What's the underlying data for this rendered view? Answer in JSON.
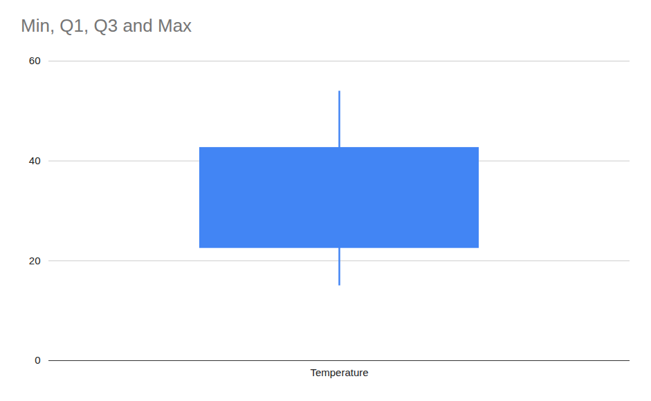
{
  "chart_data": {
    "type": "candlestick",
    "title": "Min, Q1, Q3 and Max",
    "categories": [
      "Temperature"
    ],
    "min": [
      15
    ],
    "q1": [
      22.5
    ],
    "q3": [
      42.7
    ],
    "max": [
      54
    ],
    "color": "#4285f4",
    "ylim": [
      0,
      60
    ],
    "yticks": [
      0,
      20,
      40,
      60
    ],
    "grid": true
  }
}
